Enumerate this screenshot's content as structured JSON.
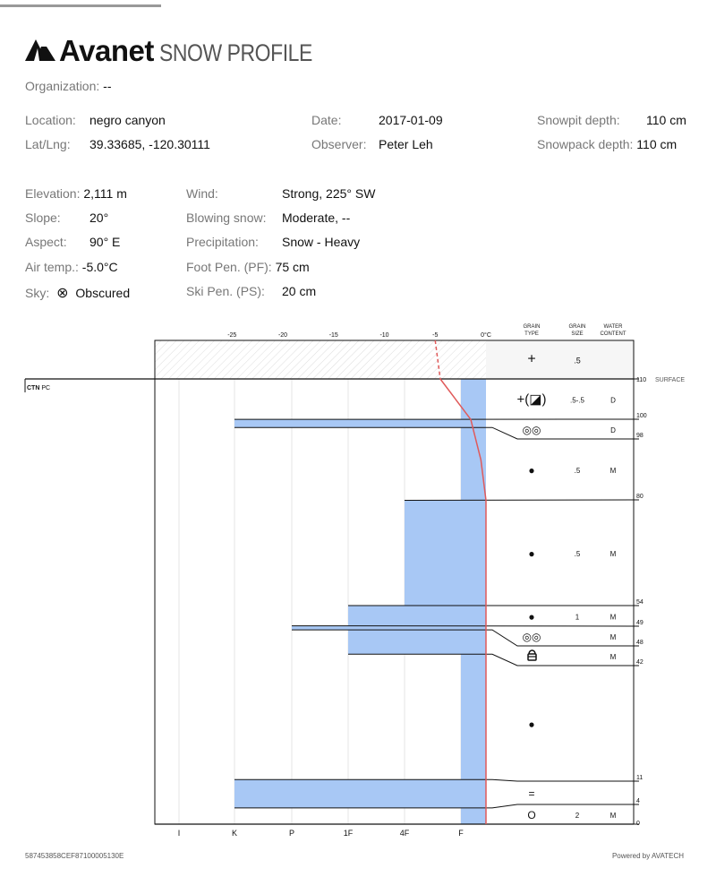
{
  "header": {
    "brand": "Avanet",
    "subtitle": "SNOW PROFILE"
  },
  "info": {
    "organization": {
      "label": "Organization:",
      "value": "--"
    },
    "location": {
      "label": "Location:",
      "value": "negro canyon"
    },
    "latlng": {
      "label": "Lat/Lng:",
      "value": "39.33685, -120.30111"
    },
    "date": {
      "label": "Date:",
      "value": "2017-01-09"
    },
    "observer": {
      "label": "Observer:",
      "value": "Peter Leh"
    },
    "snowpit_depth": {
      "label": "Snowpit depth:",
      "value": "110 cm"
    },
    "snowpack_depth": {
      "label": "Snowpack depth:",
      "value": "110 cm"
    },
    "elevation": {
      "label": "Elevation:",
      "value": "2,111 m"
    },
    "slope": {
      "label": "Slope:",
      "value": "20°"
    },
    "aspect": {
      "label": "Aspect:",
      "value": "90° E"
    },
    "air_temp": {
      "label": "Air temp.:",
      "value": "-5.0°C"
    },
    "sky": {
      "label": "Sky:",
      "value": "Obscured",
      "icon": "circle-x-icon"
    },
    "wind": {
      "label": "Wind:",
      "value": "Strong, 225° SW"
    },
    "blowing_snow": {
      "label": "Blowing snow:",
      "value": "Moderate, --"
    },
    "precipitation": {
      "label": "Precipitation:",
      "value": "Snow - Heavy"
    },
    "foot_pen": {
      "label": "Foot Pen. (PF):",
      "value": "75 cm"
    },
    "ski_pen": {
      "label": "Ski Pen. (PS):",
      "value": "20 cm"
    }
  },
  "chart_data": {
    "type": "snow-profile",
    "temp_axis": {
      "ticks": [
        "-25",
        "-20",
        "-15",
        "-10",
        "-5",
        "0°C"
      ],
      "values": [
        -25,
        -20,
        -15,
        -10,
        -5,
        0
      ]
    },
    "hardness_axis": {
      "ticks": [
        "I",
        "K",
        "P",
        "1F",
        "4F",
        "F"
      ]
    },
    "column_headers": {
      "grain_type": [
        "GRAIN",
        "TYPE"
      ],
      "grain_size": [
        "GRAIN",
        "SIZE"
      ],
      "water_content": [
        "WATER",
        "CONTENT"
      ]
    },
    "surface_label": "SURFACE",
    "height_ticks": [
      "110",
      "100",
      "98",
      "80",
      "54",
      "49",
      "48",
      "42",
      "11",
      "4",
      "0"
    ],
    "surface_grain": {
      "type": "+",
      "size": ".5"
    },
    "layers": [
      {
        "top": 110,
        "bottom": 100,
        "hardness": "F",
        "grain": "+(◪)",
        "size": ".5-.5",
        "water": "D"
      },
      {
        "top": 100,
        "bottom": 98,
        "hardness": "K",
        "grain": "◎◎",
        "size": "",
        "water": "D"
      },
      {
        "top": 98,
        "bottom": 80,
        "hardness": "F",
        "grain": "●",
        "size": ".5",
        "water": "M"
      },
      {
        "top": 80,
        "bottom": 54,
        "hardness": "4F",
        "grain": "●",
        "size": ".5",
        "water": "M"
      },
      {
        "top": 54,
        "bottom": 49,
        "hardness": "1F",
        "grain": "●",
        "size": "1",
        "water": "M"
      },
      {
        "top": 49,
        "bottom": 48,
        "hardness": "P",
        "grain": "◎◎",
        "size": "",
        "water": "M"
      },
      {
        "top": 48,
        "bottom": 42,
        "hardness": "1F",
        "grain": "lock",
        "size": "",
        "water": "M"
      },
      {
        "top": 42,
        "bottom": 11,
        "hardness": "F",
        "grain": "●",
        "size": "",
        "water": ""
      },
      {
        "top": 11,
        "bottom": 4,
        "hardness": "K",
        "grain": "=",
        "size": "",
        "water": ""
      },
      {
        "top": 4,
        "bottom": 0,
        "hardness": "F",
        "grain": "O",
        "size": "2",
        "water": "M"
      }
    ],
    "temperature_profile": [
      [
        110,
        -4.5
      ],
      [
        100,
        -1.5
      ],
      [
        90,
        -0.5
      ],
      [
        80,
        0
      ],
      [
        0,
        0
      ]
    ],
    "air_temperature": -5.0,
    "tests": [
      {
        "height": 110,
        "label_bold": "CTN",
        "label": "PC"
      }
    ],
    "colors": {
      "hardness": "#a8c8f5",
      "temperature": "#e05a5a"
    }
  },
  "footer": {
    "id": "587453858CEF87100005130E",
    "powered": "Powered by AVATECH"
  }
}
